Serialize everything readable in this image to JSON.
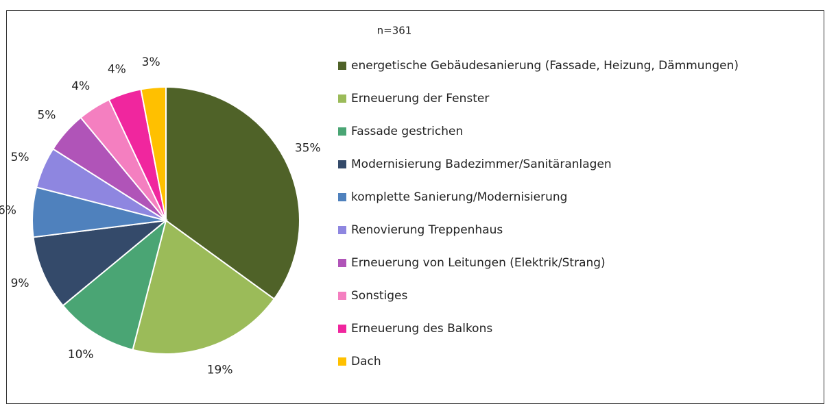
{
  "chart_data": {
    "type": "pie",
    "subtitle": "n=361",
    "categories": [
      "energetische Gebäudesanierung (Fassade, Heizung, Dämmungen)",
      "Erneuerung der Fenster",
      "Fassade gestrichen",
      "Modernisierung Badezimmer/Sanitäranlagen",
      "komplette Sanierung/Modernisierung",
      "Renovierung Treppenhaus",
      "Erneuerung von Leitungen (Elektrik/Strang)",
      "Sonstiges",
      "Erneuerung des Balkons",
      "Dach"
    ],
    "values": [
      35,
      19,
      10,
      9,
      6,
      5,
      5,
      4,
      4,
      3
    ],
    "value_labels": [
      "35%",
      "19%",
      "10%",
      "9%",
      "6%",
      "5%",
      "5%",
      "4%",
      "4%",
      "3%"
    ],
    "colors": [
      "#4f6228",
      "#9bbb59",
      "#4aa574",
      "#344a6a",
      "#4f81bd",
      "#8e86e0",
      "#b054b8",
      "#f47fc0",
      "#f0269e",
      "#ffc000"
    ]
  }
}
